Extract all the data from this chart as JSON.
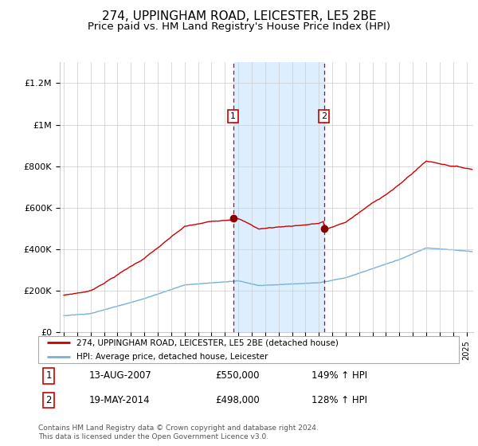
{
  "title": "274, UPPINGHAM ROAD, LEICESTER, LE5 2BE",
  "subtitle": "Price paid vs. HM Land Registry's House Price Index (HPI)",
  "title_fontsize": 11,
  "subtitle_fontsize": 9.5,
  "ylabel_ticks": [
    "£0",
    "£200K",
    "£400K",
    "£600K",
    "£800K",
    "£1M",
    "£1.2M"
  ],
  "ytick_values": [
    0,
    200000,
    400000,
    600000,
    800000,
    1000000,
    1200000
  ],
  "ylim": [
    0,
    1300000
  ],
  "xlim_start": 1994.7,
  "xlim_end": 2025.5,
  "sale1_year": 2007.617,
  "sale1_price": 550000,
  "sale1_label": "1",
  "sale1_date": "13-AUG-2007",
  "sale1_hpi_pct": "149% ↑ HPI",
  "sale2_year": 2014.378,
  "sale2_price": 498000,
  "sale2_label": "2",
  "sale2_date": "19-MAY-2014",
  "sale2_hpi_pct": "128% ↑ HPI",
  "red_line_color": "#cc0000",
  "blue_line_color": "#7ab0d4",
  "shade_color": "#ddeeff",
  "legend_label1": "274, UPPINGHAM ROAD, LEICESTER, LE5 2BE (detached house)",
  "legend_label2": "HPI: Average price, detached house, Leicester",
  "footer": "Contains HM Land Registry data © Crown copyright and database right 2024.\nThis data is licensed under the Open Government Licence v3.0.",
  "background_color": "#ffffff",
  "grid_color": "#cccccc"
}
